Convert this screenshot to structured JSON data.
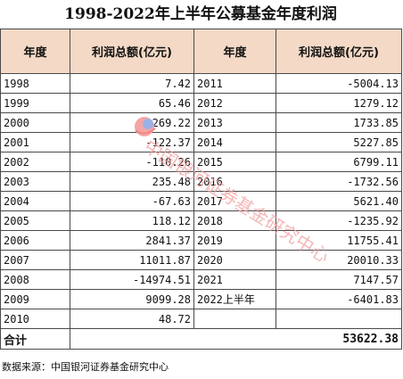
{
  "title": "1998-2022年上半年公募基金年度利润",
  "headers": {
    "year": "年度",
    "profit": "利润总额(亿元)"
  },
  "left_rows": [
    {
      "year": "1998",
      "value": "7.42"
    },
    {
      "year": "1999",
      "value": "65.46"
    },
    {
      "year": "2000",
      "value": "269.22"
    },
    {
      "year": "2001",
      "value": "-122.37"
    },
    {
      "year": "2002",
      "value": "-110.26"
    },
    {
      "year": "2003",
      "value": "235.48"
    },
    {
      "year": "2004",
      "value": "-67.63"
    },
    {
      "year": "2005",
      "value": "118.12"
    },
    {
      "year": "2006",
      "value": "2841.37"
    },
    {
      "year": "2007",
      "value": "11011.87"
    },
    {
      "year": "2008",
      "value": "-14974.51"
    },
    {
      "year": "2009",
      "value": "9099.28"
    },
    {
      "year": "2010",
      "value": "48.72"
    }
  ],
  "right_rows": [
    {
      "year": "2011",
      "value": "-5004.13"
    },
    {
      "year": "2012",
      "value": "1279.12"
    },
    {
      "year": "2013",
      "value": "1733.85"
    },
    {
      "year": "2014",
      "value": "5227.85"
    },
    {
      "year": "2015",
      "value": "6799.11"
    },
    {
      "year": "2016",
      "value": "-1732.56"
    },
    {
      "year": "2017",
      "value": "5621.40"
    },
    {
      "year": "2018",
      "value": "-1235.92"
    },
    {
      "year": "2019",
      "value": "11755.41"
    },
    {
      "year": "2020",
      "value": "20010.33"
    },
    {
      "year": "2021",
      "value": "7147.57"
    },
    {
      "year": "2022上半年",
      "value": "-6401.83"
    },
    {
      "year": "",
      "value": ""
    }
  ],
  "total": {
    "label": "合计",
    "value": "53622.38"
  },
  "source": "数据来源：中国银河证券基金研究中心",
  "watermark": {
    "text": "中国银河证券基金研究中心",
    "logo": "galaxy-logo-icon",
    "color": "#f2a0a0"
  }
}
